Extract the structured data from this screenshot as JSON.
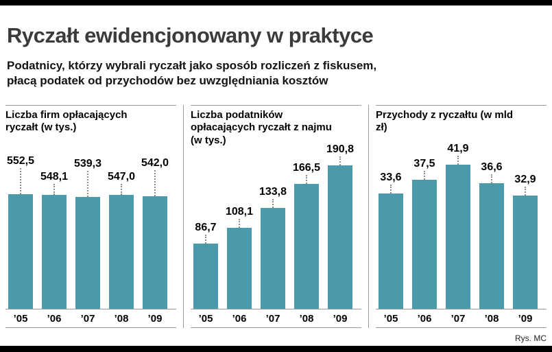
{
  "header": {
    "title": "Ryczałt ewidencjonowany w praktyce",
    "subtitle_line1": "Podatnicy, którzy wybrali ryczałt jako sposób rozliczeń z fiskusem,",
    "subtitle_line2": "płacą podatek od przychodów bez uwzględniania kosztów",
    "credit": "Rys. MC"
  },
  "colors": {
    "bar": "#4b9aab",
    "rule": "#9b9b9b",
    "leader": "#8c8c8c",
    "band": "#000000"
  },
  "chart_data": [
    {
      "type": "bar",
      "title": "Liczba firm opłacających ryczałt (w tys.)",
      "categories": [
        "’05",
        "’06",
        "’07",
        "’08",
        "’09"
      ],
      "values": [
        552.5,
        548.1,
        539.3,
        547.0,
        542.0
      ],
      "value_labels": [
        "552,5",
        "548,1",
        "539,3",
        "547,0",
        "542,0"
      ],
      "ylim": [
        0,
        760
      ],
      "label_stagger": true,
      "grid": false,
      "legend": false
    },
    {
      "type": "bar",
      "title": "Liczba podatników opłacających ryczałt z najmu (w tys.)",
      "categories": [
        "’05",
        "’06",
        "’07",
        "’08",
        "’09"
      ],
      "values": [
        86.7,
        108.1,
        133.8,
        166.5,
        190.8
      ],
      "value_labels": [
        "86,7",
        "108,1",
        "133,8",
        "166,5",
        "190,8"
      ],
      "ylim": [
        0,
        210
      ],
      "label_stagger": false,
      "grid": false,
      "legend": false
    },
    {
      "type": "bar",
      "title": "Przychody z ryczałtu (w mld zł)",
      "categories": [
        "’05",
        "’06",
        "’07",
        "’08",
        "’09"
      ],
      "values": [
        33.6,
        37.5,
        41.9,
        36.6,
        32.9
      ],
      "value_labels": [
        "33,6",
        "37,5",
        "41,9",
        "36,6",
        "32,9"
      ],
      "ylim": [
        0,
        46
      ],
      "label_stagger": false,
      "grid": false,
      "legend": false
    }
  ]
}
